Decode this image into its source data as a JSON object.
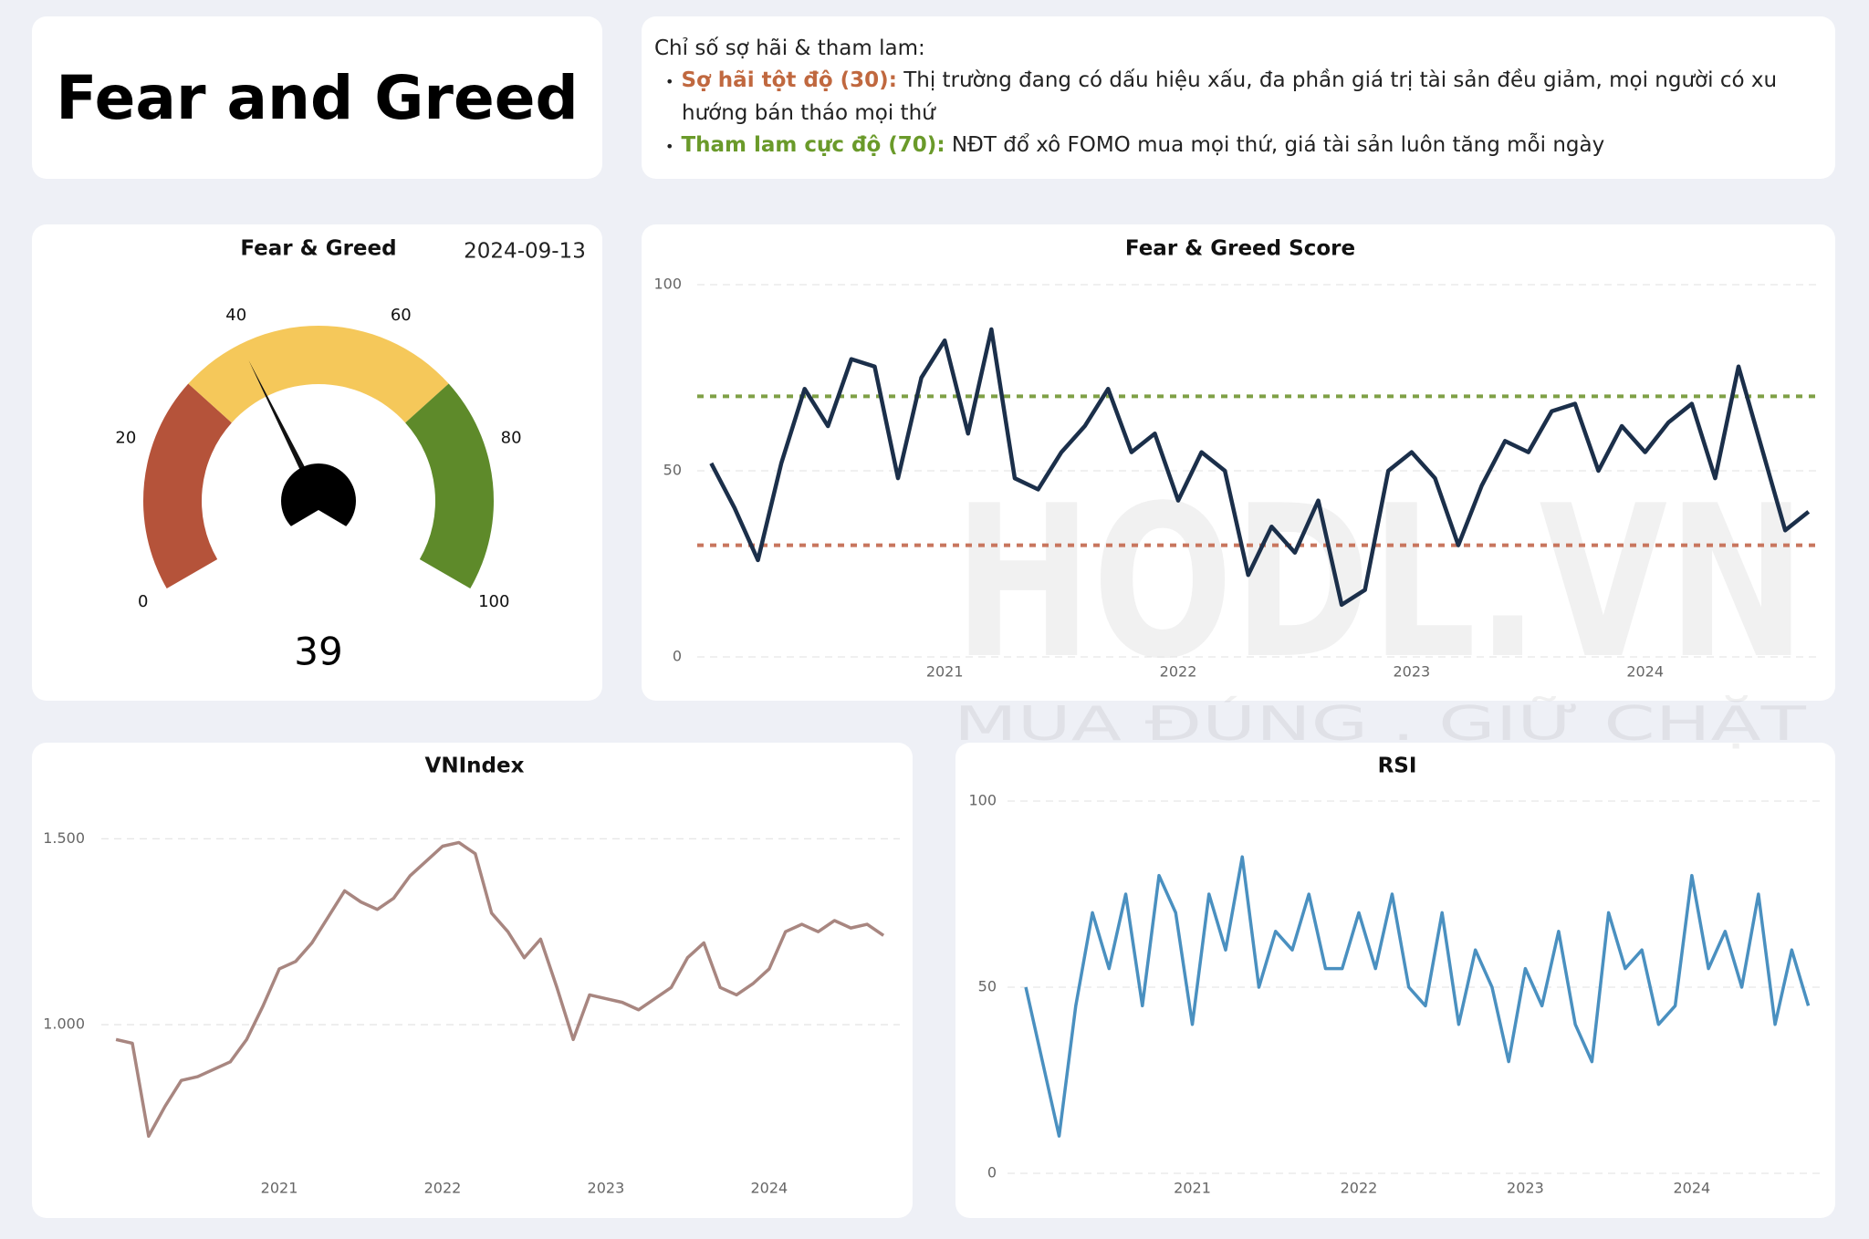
{
  "header": {
    "title": "Fear and Greed",
    "intro": "Chỉ số sợ hãi & tham lam:",
    "items": [
      {
        "term": "Sợ hãi tột độ (30):",
        "text": "Thị trường đang có dấu hiệu xấu, đa phần giá trị tài sản đều giảm, mọi người có xu hướng bán tháo mọi thứ",
        "color": "#c0683f"
      },
      {
        "term": "Tham lam cực độ (70):",
        "text": "NĐT đổ xô FOMO mua mọi thứ, giá tài sản luôn tăng mỗi ngày",
        "color": "#6a9a2a"
      }
    ]
  },
  "watermark": {
    "brand": "HODL.VN",
    "slogan": "MUA ĐÚNG . GIỮ CHẶT"
  },
  "chart_data": [
    {
      "type": "gauge",
      "title": "Fear & Greed",
      "date": "2024-09-13",
      "value": 39,
      "range": [
        0,
        100
      ],
      "ticks": [
        0,
        20,
        40,
        60,
        80,
        100
      ],
      "bands": [
        {
          "from": 0,
          "to": 30,
          "color": "#b5533a"
        },
        {
          "from": 30,
          "to": 70,
          "color": "#f5c85a"
        },
        {
          "from": 70,
          "to": 100,
          "color": "#5e8a2a"
        }
      ]
    },
    {
      "type": "line",
      "title": "Fear & Greed Score",
      "x": [
        2020.0,
        2020.1,
        2020.2,
        2020.3,
        2020.4,
        2020.5,
        2020.6,
        2020.7,
        2020.8,
        2020.9,
        2021.0,
        2021.1,
        2021.2,
        2021.3,
        2021.4,
        2021.5,
        2021.6,
        2021.7,
        2021.8,
        2021.9,
        2022.0,
        2022.1,
        2022.2,
        2022.3,
        2022.4,
        2022.5,
        2022.6,
        2022.7,
        2022.8,
        2022.9,
        2023.0,
        2023.1,
        2023.2,
        2023.3,
        2023.4,
        2023.5,
        2023.6,
        2023.7,
        2023.8,
        2023.9,
        2024.0,
        2024.1,
        2024.2,
        2024.3,
        2024.4,
        2024.5,
        2024.6,
        2024.7
      ],
      "series": [
        {
          "color": "#1b2f4a",
          "values": [
            52,
            40,
            26,
            52,
            72,
            62,
            80,
            78,
            48,
            75,
            85,
            60,
            88,
            48,
            45,
            55,
            62,
            72,
            55,
            60,
            42,
            55,
            50,
            22,
            35,
            28,
            42,
            14,
            18,
            50,
            55,
            48,
            30,
            46,
            58,
            55,
            66,
            68,
            50,
            62,
            55,
            63,
            68,
            48,
            78,
            56,
            34,
            39
          ]
        }
      ],
      "reference_lines": [
        {
          "value": 70,
          "color": "#7fa046"
        },
        {
          "value": 30,
          "color": "#c8765e"
        }
      ],
      "xlim": [
        2019.94,
        2024.74
      ],
      "xticks": [
        2021,
        2022,
        2023,
        2024
      ],
      "ylim": [
        0,
        100
      ],
      "yticks": [
        0,
        50,
        100
      ],
      "grid": true
    },
    {
      "type": "line",
      "title": "VNIndex",
      "x": [
        2020.0,
        2020.1,
        2020.2,
        2020.3,
        2020.4,
        2020.5,
        2020.6,
        2020.7,
        2020.8,
        2020.9,
        2021.0,
        2021.1,
        2021.2,
        2021.3,
        2021.4,
        2021.5,
        2021.6,
        2021.7,
        2021.8,
        2021.9,
        2022.0,
        2022.1,
        2022.2,
        2022.3,
        2022.4,
        2022.5,
        2022.6,
        2022.7,
        2022.8,
        2022.9,
        2023.0,
        2023.1,
        2023.2,
        2023.3,
        2023.4,
        2023.5,
        2023.6,
        2023.7,
        2023.8,
        2023.9,
        2024.0,
        2024.1,
        2024.2,
        2024.3,
        2024.4,
        2024.5,
        2024.6,
        2024.7
      ],
      "series": [
        {
          "color": "#a88680",
          "values": [
            960,
            950,
            700,
            780,
            850,
            860,
            880,
            900,
            960,
            1050,
            1150,
            1170,
            1220,
            1290,
            1360,
            1330,
            1310,
            1340,
            1400,
            1440,
            1480,
            1490,
            1460,
            1300,
            1250,
            1180,
            1230,
            1100,
            960,
            1080,
            1070,
            1060,
            1040,
            1070,
            1100,
            1180,
            1220,
            1100,
            1080,
            1110,
            1150,
            1250,
            1270,
            1250,
            1280,
            1260,
            1270,
            1240
          ]
        }
      ],
      "xlim": [
        2019.91,
        2024.8
      ],
      "xticks": [
        2021,
        2022,
        2023,
        2024
      ],
      "ylim": [
        600,
        1550
      ],
      "yticks": [
        {
          "value": 1000,
          "label": "1.000"
        },
        {
          "value": 1500,
          "label": "1.500"
        }
      ],
      "grid": true
    },
    {
      "type": "line",
      "title": "RSI",
      "x": [
        2020.0,
        2020.1,
        2020.2,
        2020.3,
        2020.4,
        2020.5,
        2020.6,
        2020.7,
        2020.8,
        2020.9,
        2021.0,
        2021.1,
        2021.2,
        2021.3,
        2021.4,
        2021.5,
        2021.6,
        2021.7,
        2021.8,
        2021.9,
        2022.0,
        2022.1,
        2022.2,
        2022.3,
        2022.4,
        2022.5,
        2022.6,
        2022.7,
        2022.8,
        2022.9,
        2023.0,
        2023.1,
        2023.2,
        2023.3,
        2023.4,
        2023.5,
        2023.6,
        2023.7,
        2023.8,
        2023.9,
        2024.0,
        2024.1,
        2024.2,
        2024.3,
        2024.4,
        2024.5,
        2024.6,
        2024.7
      ],
      "series": [
        {
          "color": "#4a90c0",
          "values": [
            50,
            30,
            10,
            45,
            70,
            55,
            75,
            45,
            80,
            70,
            40,
            75,
            60,
            85,
            50,
            65,
            60,
            75,
            55,
            55,
            70,
            55,
            75,
            50,
            45,
            70,
            40,
            60,
            50,
            30,
            55,
            45,
            65,
            40,
            30,
            70,
            55,
            60,
            40,
            45,
            80,
            55,
            65,
            50,
            75,
            40,
            60,
            45
          ]
        }
      ],
      "xlim": [
        2019.89,
        2024.79
      ],
      "xticks": [
        2021,
        2022,
        2023,
        2024
      ],
      "ylim": [
        0,
        100
      ],
      "yticks": [
        0,
        50,
        100
      ],
      "grid": true
    }
  ]
}
